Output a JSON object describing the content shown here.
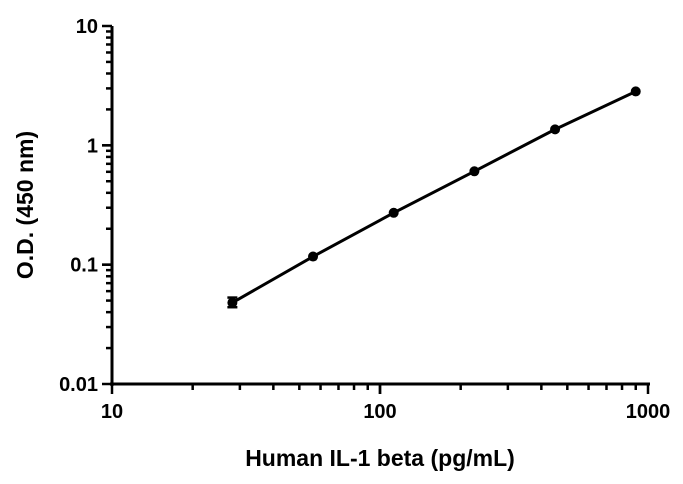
{
  "chart_data": {
    "type": "scatter",
    "xlabel": "Human IL-1 beta (pg/mL)",
    "ylabel": "O.D. (450 nm)",
    "x_scale": "log",
    "y_scale": "log",
    "xlim": [
      10,
      1000
    ],
    "ylim": [
      0.01,
      10
    ],
    "x_ticks": [
      {
        "value": 10,
        "label": "10"
      },
      {
        "value": 100,
        "label": "100"
      },
      {
        "value": 1000,
        "label": "1000"
      }
    ],
    "y_ticks": [
      {
        "value": 0.01,
        "label": "0.01"
      },
      {
        "value": 0.1,
        "label": "0.1"
      },
      {
        "value": 1,
        "label": "1"
      },
      {
        "value": 10,
        "label": "10"
      }
    ],
    "grid": false,
    "series": [
      {
        "x": [
          28.13,
          56.25,
          112.5,
          225,
          450,
          900
        ],
        "y": [
          0.048,
          0.117,
          0.272,
          0.606,
          1.36,
          2.83
        ],
        "error_low": [
          0.044,
          null,
          null,
          null,
          null,
          null
        ],
        "error_high": [
          0.053,
          null,
          null,
          null,
          null,
          null
        ],
        "color": "#000000",
        "fit_line": true
      }
    ]
  }
}
